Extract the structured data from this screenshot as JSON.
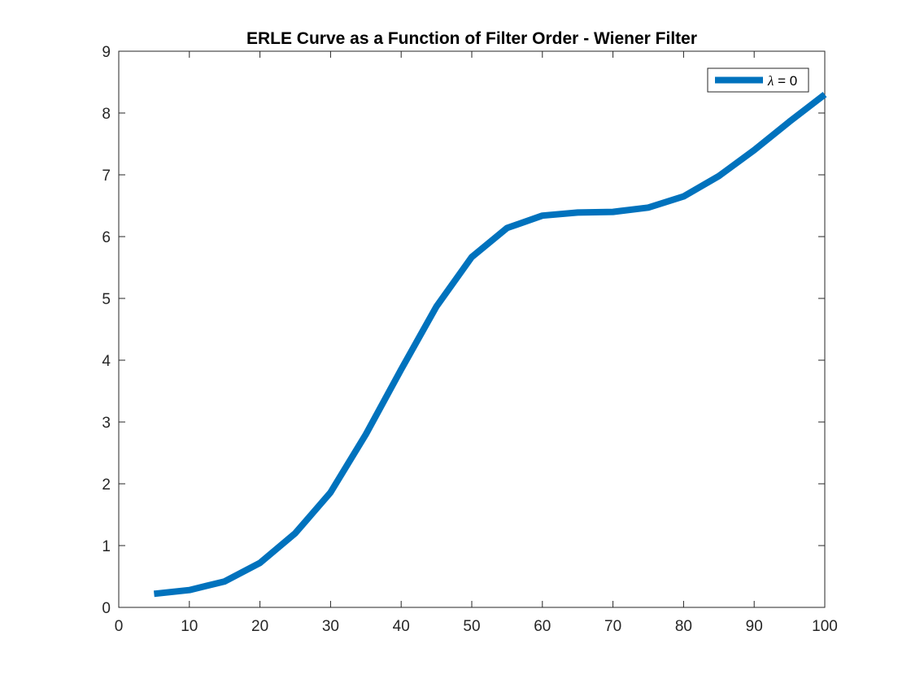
{
  "chart_data": {
    "type": "line",
    "title": "ERLE Curve as a Function of Filter Order - Wiener Filter",
    "xlabel": "",
    "ylabel": "",
    "xlim": [
      0,
      100
    ],
    "ylim": [
      0,
      9
    ],
    "xticks": [
      0,
      10,
      20,
      30,
      40,
      50,
      60,
      70,
      80,
      90,
      100
    ],
    "yticks": [
      0,
      1,
      2,
      3,
      4,
      5,
      6,
      7,
      8,
      9
    ],
    "grid": false,
    "legend_position": "top-right",
    "series": [
      {
        "name": "λ = 0",
        "legend_symbol": "λ",
        "legend_rest": " = 0",
        "color": "#0072BD",
        "x": [
          5,
          10,
          15,
          20,
          25,
          30,
          35,
          40,
          45,
          50,
          55,
          60,
          65,
          70,
          75,
          80,
          85,
          90,
          95,
          100
        ],
        "y": [
          0.22,
          0.28,
          0.42,
          0.72,
          1.2,
          1.86,
          2.8,
          3.85,
          4.87,
          5.67,
          6.14,
          6.34,
          6.39,
          6.4,
          6.47,
          6.65,
          6.98,
          7.4,
          7.86,
          8.3
        ]
      }
    ]
  }
}
